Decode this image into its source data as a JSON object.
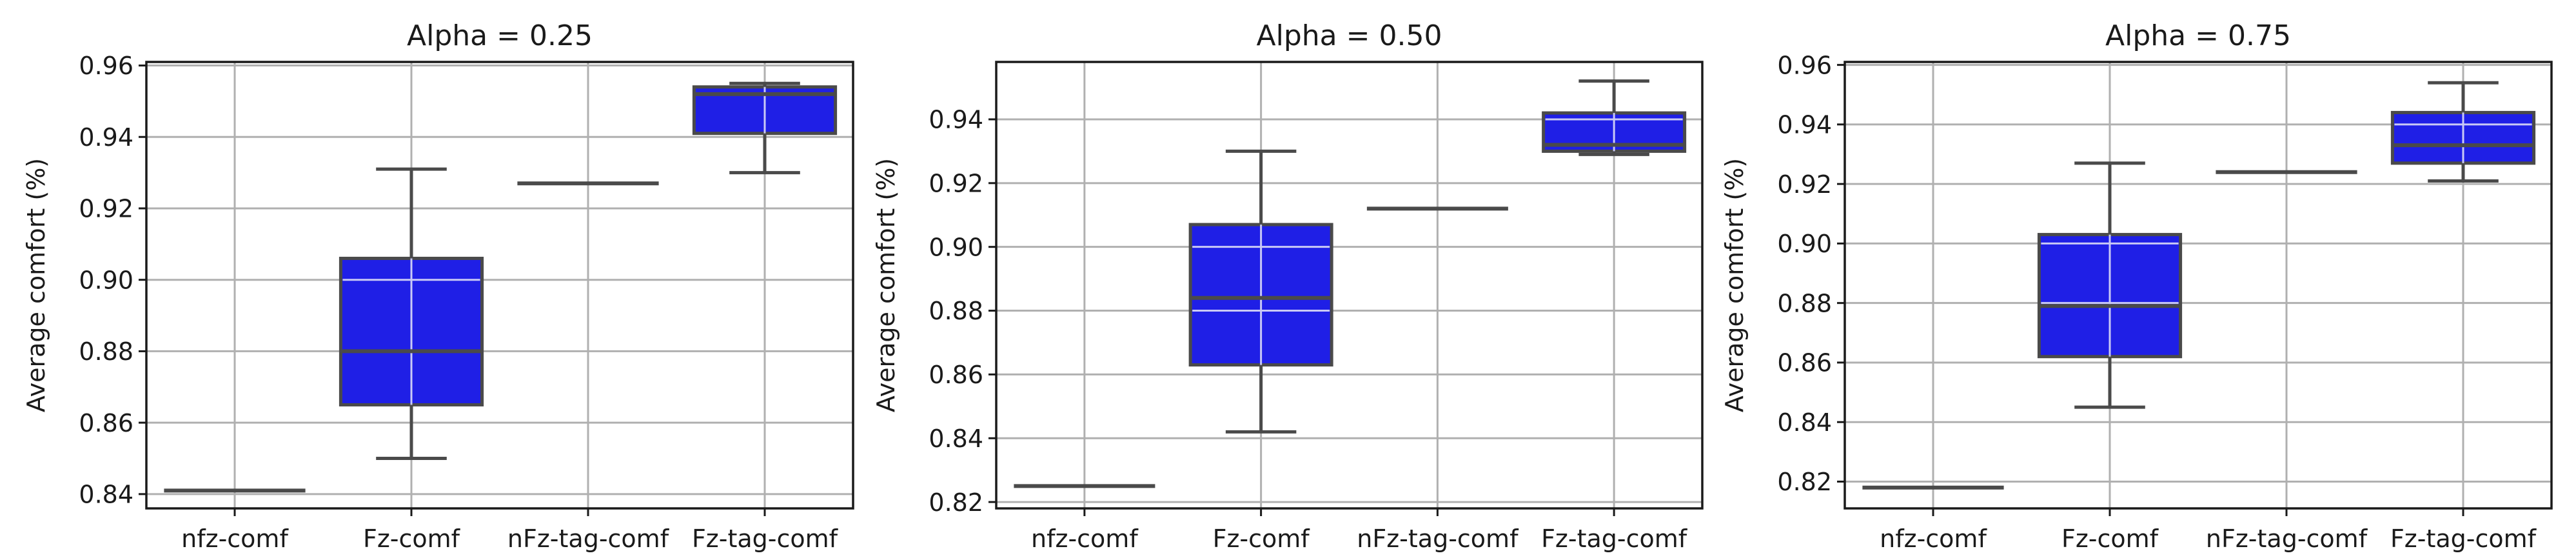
{
  "chart_data": [
    {
      "type": "box",
      "title": "Alpha = 0.25",
      "xlabel": "",
      "ylabel": "Average comfort (%)",
      "categories": [
        "nfz-comf",
        "Fz-comf",
        "nFz-tag-comf",
        "Fz-tag-comf"
      ],
      "ylim": [
        0.836,
        0.961
      ],
      "yticks": [
        0.84,
        0.86,
        0.88,
        0.9,
        0.92,
        0.94,
        0.96
      ],
      "ytick_labels": [
        "0.84",
        "0.86",
        "0.88",
        "0.90",
        "0.92",
        "0.94",
        "0.96"
      ],
      "grid": true,
      "boxes": [
        {
          "min": 0.841,
          "q1": 0.841,
          "median": 0.841,
          "q3": 0.841,
          "max": 0.841
        },
        {
          "min": 0.85,
          "q1": 0.865,
          "median": 0.88,
          "q3": 0.906,
          "max": 0.931
        },
        {
          "min": 0.927,
          "q1": 0.927,
          "median": 0.927,
          "q3": 0.927,
          "max": 0.927
        },
        {
          "min": 0.93,
          "q1": 0.941,
          "median": 0.952,
          "q3": 0.954,
          "max": 0.955
        }
      ]
    },
    {
      "type": "box",
      "title": "Alpha = 0.50",
      "xlabel": "",
      "ylabel": "Average comfort (%)",
      "categories": [
        "nfz-comf",
        "Fz-comf",
        "nFz-tag-comf",
        "Fz-tag-comf"
      ],
      "ylim": [
        0.818,
        0.958
      ],
      "yticks": [
        0.82,
        0.84,
        0.86,
        0.88,
        0.9,
        0.92,
        0.94
      ],
      "ytick_labels": [
        "0.82",
        "0.84",
        "0.86",
        "0.88",
        "0.90",
        "0.92",
        "0.94"
      ],
      "grid": true,
      "boxes": [
        {
          "min": 0.825,
          "q1": 0.825,
          "median": 0.825,
          "q3": 0.825,
          "max": 0.825
        },
        {
          "min": 0.842,
          "q1": 0.863,
          "median": 0.884,
          "q3": 0.907,
          "max": 0.93
        },
        {
          "min": 0.912,
          "q1": 0.912,
          "median": 0.912,
          "q3": 0.912,
          "max": 0.912
        },
        {
          "min": 0.929,
          "q1": 0.93,
          "median": 0.932,
          "q3": 0.942,
          "max": 0.952
        }
      ]
    },
    {
      "type": "box",
      "title": "Alpha = 0.75",
      "xlabel": "",
      "ylabel": "Average comfort (%)",
      "categories": [
        "nfz-comf",
        "Fz-comf",
        "nFz-tag-comf",
        "Fz-tag-comf"
      ],
      "ylim": [
        0.811,
        0.961
      ],
      "yticks": [
        0.82,
        0.84,
        0.86,
        0.88,
        0.9,
        0.92,
        0.94,
        0.96
      ],
      "ytick_labels": [
        "0.82",
        "0.84",
        "0.86",
        "0.88",
        "0.90",
        "0.92",
        "0.94",
        "0.96"
      ],
      "grid": true,
      "boxes": [
        {
          "min": 0.818,
          "q1": 0.818,
          "median": 0.818,
          "q3": 0.818,
          "max": 0.818
        },
        {
          "min": 0.845,
          "q1": 0.862,
          "median": 0.879,
          "q3": 0.903,
          "max": 0.927
        },
        {
          "min": 0.924,
          "q1": 0.924,
          "median": 0.924,
          "q3": 0.924,
          "max": 0.924
        },
        {
          "min": 0.921,
          "q1": 0.927,
          "median": 0.933,
          "q3": 0.944,
          "max": 0.954
        }
      ]
    }
  ],
  "style": {
    "box_fill": "#1f1fe6",
    "box_edge": "#4a4a4a",
    "axis_color": "#1a1a1a",
    "grid_color": "#b0b0b0"
  }
}
